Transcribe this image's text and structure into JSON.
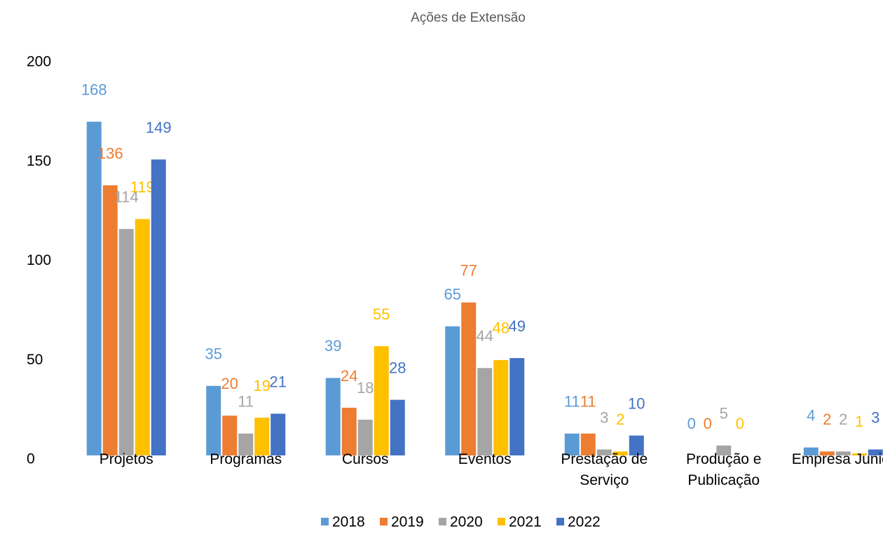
{
  "chart_data": {
    "type": "bar",
    "title": "Ações de Extensão",
    "categories": [
      "Projetos",
      "Programas",
      "Cursos",
      "Eventos",
      "Prestação de Serviço",
      "Produção e Publicação",
      "Empresa Junior"
    ],
    "series": [
      {
        "name": "2018",
        "color": "#5b9bd5",
        "values": [
          168,
          35,
          39,
          65,
          11,
          0,
          4
        ]
      },
      {
        "name": "2019",
        "color": "#ed7d31",
        "values": [
          136,
          20,
          24,
          77,
          11,
          0,
          2
        ]
      },
      {
        "name": "2020",
        "color": "#a5a5a5",
        "values": [
          114,
          11,
          18,
          44,
          3,
          5,
          2
        ]
      },
      {
        "name": "2021",
        "color": "#ffc000",
        "values": [
          119,
          19,
          55,
          48,
          2,
          0,
          1
        ]
      },
      {
        "name": "2022",
        "color": "#4472c4",
        "values": [
          149,
          21,
          28,
          49,
          10,
          null,
          3
        ]
      }
    ],
    "ylim": [
      0,
      200
    ],
    "yticks": [
      0,
      50,
      100,
      150,
      200
    ],
    "grid": false,
    "legend": "bottom"
  }
}
